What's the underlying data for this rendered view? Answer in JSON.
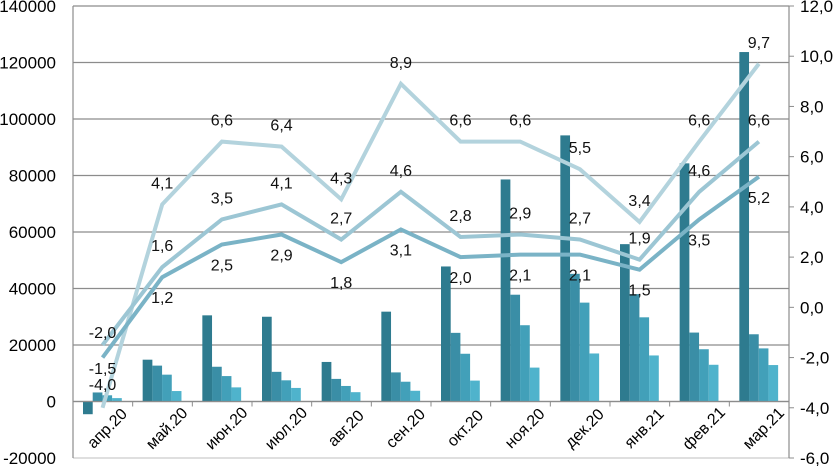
{
  "chart_data": {
    "type": "bar",
    "title": "",
    "xlabel": "",
    "ylabel": "",
    "ylabel_right": "",
    "categories": [
      "апр.20",
      "май.20",
      "июн.20",
      "июл.20",
      "авг.20",
      "сен.20",
      "окт.20",
      "ноя.20",
      "дек.20",
      "янв.21",
      "фев.21",
      "мар.21"
    ],
    "ylim": [
      -20000,
      140000
    ],
    "yticks": [
      -20000,
      0,
      20000,
      40000,
      60000,
      80000,
      100000,
      120000,
      140000
    ],
    "ytick_labels": [
      "-20000",
      "0",
      "20000",
      "40000",
      "60000",
      "80000",
      "100000",
      "120000",
      "140000"
    ],
    "ylim_right": [
      -6.0,
      12.0
    ],
    "yticks_right": [
      -6.0,
      -4.0,
      -2.0,
      0.0,
      2.0,
      4.0,
      6.0,
      8.0,
      10.0,
      12.0
    ],
    "ytick_labels_right": [
      "-6,0",
      "-4,0",
      "-2,0",
      "0,0",
      "2,0",
      "4,0",
      "6,0",
      "8,0",
      "10,0",
      "12,0"
    ],
    "grid": true,
    "legend": "none",
    "bar_series": [
      {
        "name": "series 1",
        "axis": "left",
        "color": "#2e7b8f",
        "values": [
          -4500,
          14800,
          30500,
          30000,
          14000,
          31800,
          47800,
          78600,
          94200,
          55700,
          84300,
          123700
        ]
      },
      {
        "name": "series 2",
        "axis": "left",
        "color": "#3a8ea6",
        "values": [
          3200,
          12700,
          12300,
          10500,
          8000,
          10300,
          24300,
          37800,
          45200,
          38000,
          24400,
          23800
        ]
      },
      {
        "name": "series 3",
        "axis": "left",
        "color": "#42a0b9",
        "values": [
          2200,
          9500,
          9000,
          7500,
          5500,
          7000,
          16900,
          27000,
          35000,
          29800,
          18500,
          18800
        ]
      },
      {
        "name": "series 4",
        "axis": "left",
        "color": "#4fb3cc",
        "values": [
          1200,
          3700,
          5000,
          4800,
          3300,
          3800,
          7400,
          12000,
          17000,
          16300,
          13000,
          12900
        ]
      }
    ],
    "line_series": [
      {
        "name": "line 1",
        "axis": "right",
        "color": "#b3d3dd",
        "values": [
          -4.0,
          4.1,
          6.6,
          6.4,
          4.3,
          8.9,
          6.6,
          6.6,
          5.5,
          3.4,
          6.6,
          9.7
        ],
        "labels": [
          "-4,0",
          "4,1",
          "6,6",
          "6,4",
          "4,3",
          "8,9",
          "6,6",
          "6,6",
          "5,5",
          "3,4",
          "6,6",
          "9,7"
        ]
      },
      {
        "name": "line 2",
        "axis": "right",
        "color": "#9cc6d4",
        "values": [
          -1.5,
          1.6,
          3.5,
          4.1,
          2.7,
          4.6,
          2.8,
          2.9,
          2.7,
          1.9,
          4.6,
          6.6
        ],
        "labels": [
          "-1,5",
          "1,6",
          "3,5",
          "4,1",
          "2,7",
          "4,6",
          "2,8",
          "2,9",
          "2,7",
          "1,9",
          "4,6",
          "6,6"
        ]
      },
      {
        "name": "line 3",
        "axis": "right",
        "color": "#7ab3c6",
        "values": [
          -2.0,
          1.2,
          2.5,
          2.9,
          1.8,
          3.1,
          2.0,
          2.1,
          2.1,
          1.5,
          3.5,
          5.2
        ],
        "labels": [
          "-2,0",
          "1,2",
          "2,5",
          "2,9",
          "1,8",
          "3,1",
          "2,0",
          "2,1",
          "2,1",
          "1,5",
          "3,5",
          "5,2"
        ]
      }
    ]
  }
}
